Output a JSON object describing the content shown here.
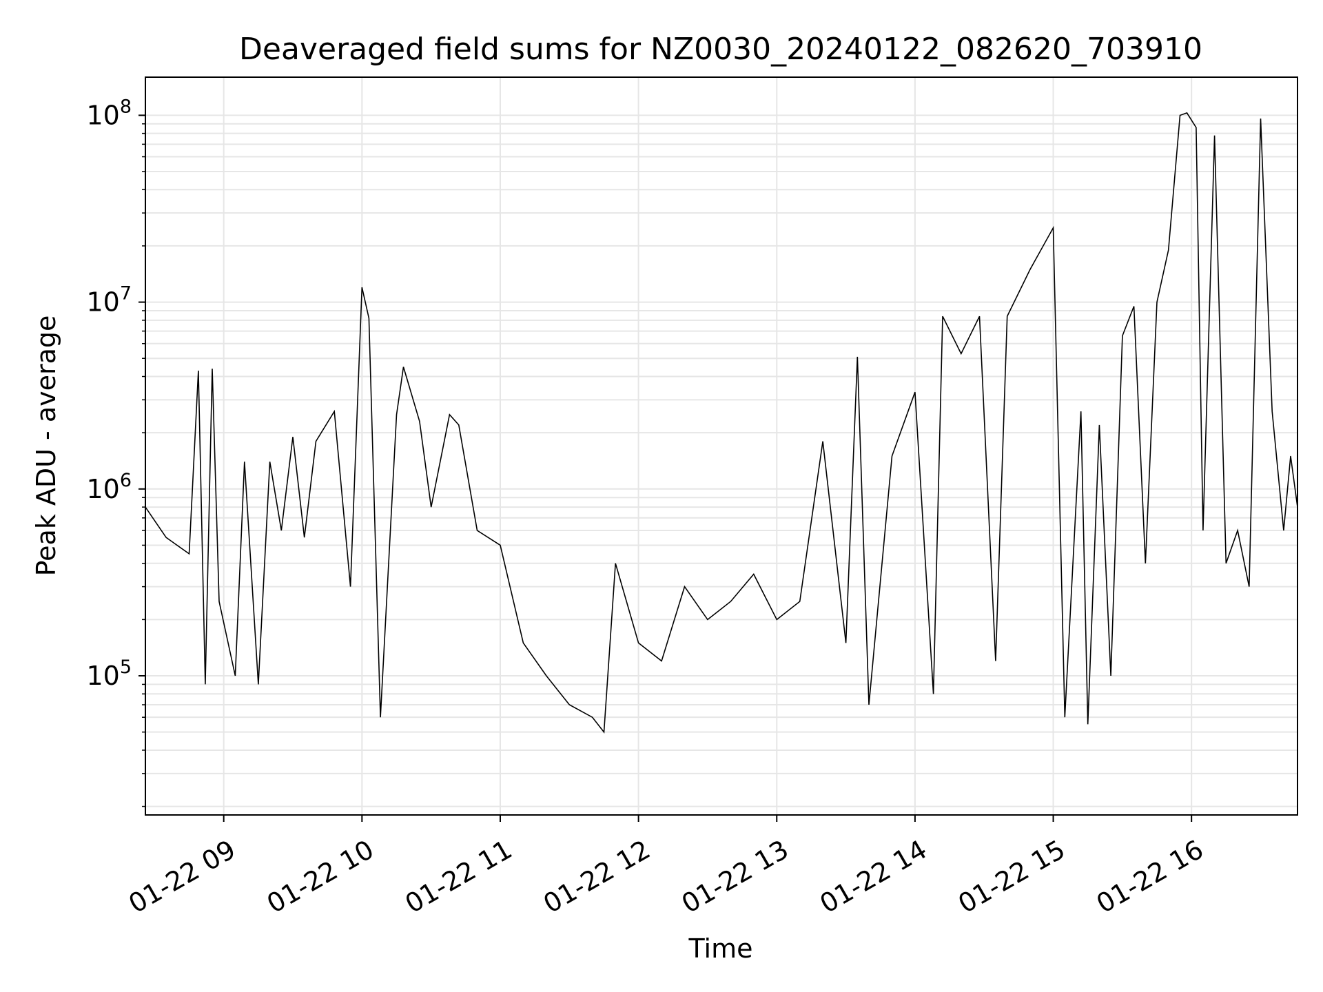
{
  "chart_data": {
    "type": "line",
    "title": "Deaveraged field sums for NZ0030_20240122_082620_703910",
    "xlabel": "Time",
    "ylabel": "Peak ADU - average",
    "y_scale": "log",
    "ylim": [
      18000,
      160000000
    ],
    "xlim": [
      "2024-01-22 08:26",
      "2024-01-22 16:46"
    ],
    "x_ticks": [
      "01-22 09",
      "01-22 10",
      "01-22 11",
      "01-22 12",
      "01-22 13",
      "01-22 14",
      "01-22 15",
      "01-22 16"
    ],
    "y_ticks": [
      {
        "base": "10",
        "exp": "5",
        "value": 100000
      },
      {
        "base": "10",
        "exp": "6",
        "value": 1000000
      },
      {
        "base": "10",
        "exp": "7",
        "value": 10000000
      },
      {
        "base": "10",
        "exp": "8",
        "value": 100000000
      }
    ],
    "grid": true,
    "legend": "none",
    "line_color": "#000000",
    "grid_color": "#e6e6e6",
    "series": [
      {
        "x": [
          "2024-01-22 08:26",
          "2024-01-22 08:35",
          "2024-01-22 08:45",
          "2024-01-22 08:49",
          "2024-01-22 08:52",
          "2024-01-22 08:55",
          "2024-01-22 08:58",
          "2024-01-22 09:05",
          "2024-01-22 09:09",
          "2024-01-22 09:15",
          "2024-01-22 09:20",
          "2024-01-22 09:25",
          "2024-01-22 09:30",
          "2024-01-22 09:35",
          "2024-01-22 09:40",
          "2024-01-22 09:48",
          "2024-01-22 09:55",
          "2024-01-22 10:00",
          "2024-01-22 10:03",
          "2024-01-22 10:08",
          "2024-01-22 10:15",
          "2024-01-22 10:18",
          "2024-01-22 10:25",
          "2024-01-22 10:30",
          "2024-01-22 10:38",
          "2024-01-22 10:42",
          "2024-01-22 10:50",
          "2024-01-22 11:00",
          "2024-01-22 11:10",
          "2024-01-22 11:20",
          "2024-01-22 11:30",
          "2024-01-22 11:40",
          "2024-01-22 11:45",
          "2024-01-22 11:50",
          "2024-01-22 12:00",
          "2024-01-22 12:10",
          "2024-01-22 12:20",
          "2024-01-22 12:30",
          "2024-01-22 12:40",
          "2024-01-22 12:50",
          "2024-01-22 13:00",
          "2024-01-22 13:10",
          "2024-01-22 13:20",
          "2024-01-22 13:30",
          "2024-01-22 13:35",
          "2024-01-22 13:40",
          "2024-01-22 13:50",
          "2024-01-22 14:00",
          "2024-01-22 14:08",
          "2024-01-22 14:12",
          "2024-01-22 14:20",
          "2024-01-22 14:28",
          "2024-01-22 14:35",
          "2024-01-22 14:40",
          "2024-01-22 14:50",
          "2024-01-22 15:00",
          "2024-01-22 15:05",
          "2024-01-22 15:12",
          "2024-01-22 15:15",
          "2024-01-22 15:20",
          "2024-01-22 15:25",
          "2024-01-22 15:30",
          "2024-01-22 15:35",
          "2024-01-22 15:40",
          "2024-01-22 15:45",
          "2024-01-22 15:50",
          "2024-01-22 15:55",
          "2024-01-22 15:58",
          "2024-01-22 16:02",
          "2024-01-22 16:05",
          "2024-01-22 16:10",
          "2024-01-22 16:15",
          "2024-01-22 16:20",
          "2024-01-22 16:25",
          "2024-01-22 16:30",
          "2024-01-22 16:35",
          "2024-01-22 16:40",
          "2024-01-22 16:43",
          "2024-01-22 16:46"
        ],
        "values": [
          800000,
          550000,
          450000,
          4300000,
          90000,
          4400000,
          250000,
          100000,
          1400000,
          90000,
          1400000,
          600000,
          1900000,
          550000,
          1800000,
          2600000,
          300000,
          12000000,
          8200000,
          60000,
          2500000,
          4500000,
          2300000,
          800000,
          2500000,
          2200000,
          600000,
          500000,
          150000,
          100000,
          70000,
          60000,
          50000,
          400000,
          150000,
          120000,
          300000,
          200000,
          250000,
          350000,
          200000,
          250000,
          1800000,
          150000,
          5100000,
          70000,
          1500000,
          3300000,
          80000,
          8400000,
          5300000,
          8400000,
          120000,
          8400000,
          15000000,
          25000000,
          60000,
          2600000,
          55000,
          2200000,
          100000,
          6600000,
          9500000,
          400000,
          10000000,
          19000000,
          100000000,
          103000000,
          86000000,
          600000,
          78000000,
          400000,
          600000,
          300000,
          96000000,
          2600000,
          600000,
          1500000,
          800000
        ]
      }
    ]
  }
}
